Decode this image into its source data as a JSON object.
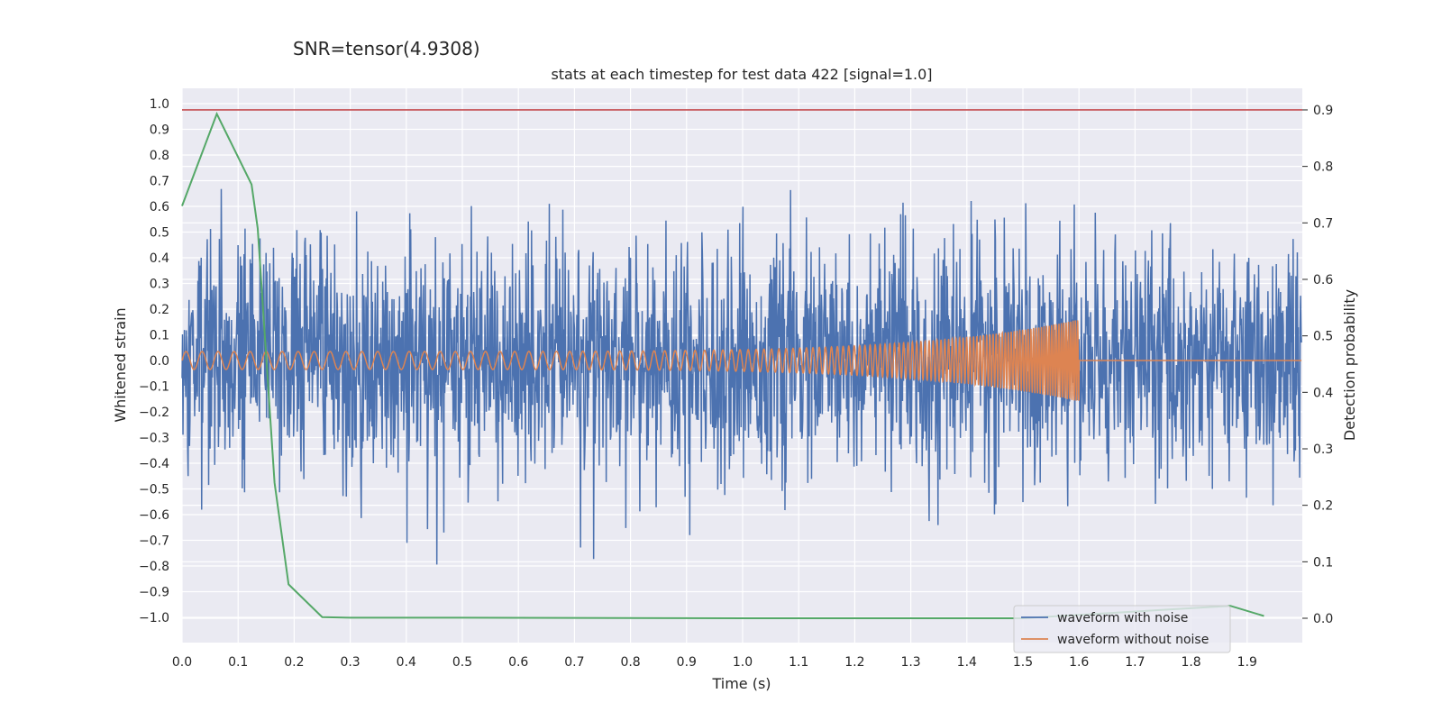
{
  "chart_data": {
    "type": "line",
    "suptitle": "SNR=tensor(4.9308)",
    "title": "stats at each timestep for test data 422 [signal=1.0]",
    "xlabel": "Time (s)",
    "ylabel": "Whitened strain",
    "ylabel_right": "Detection probability",
    "xlim": [
      0.0,
      2.0
    ],
    "ylim": [
      -1.1,
      1.1
    ],
    "ylim_right": [
      -0.04,
      0.94
    ],
    "x_ticks": [
      "0.0",
      "0.1",
      "0.2",
      "0.3",
      "0.4",
      "0.5",
      "0.6",
      "0.7",
      "0.8",
      "0.9",
      "1.0",
      "1.1",
      "1.2",
      "1.3",
      "1.4",
      "1.5",
      "1.6",
      "1.7",
      "1.8",
      "1.9"
    ],
    "y_ticks": [
      "1.0",
      "0.9",
      "0.8",
      "0.7",
      "0.6",
      "0.5",
      "0.4",
      "0.3",
      "0.2",
      "0.1",
      "0.0",
      "−0.1",
      "−0.2",
      "−0.3",
      "−0.4",
      "−0.5",
      "−0.6",
      "−0.7",
      "−0.8",
      "−0.9",
      "−1.0"
    ],
    "y_ticks_right": [
      "0.9",
      "0.8",
      "0.7",
      "0.6",
      "0.5",
      "0.4",
      "0.3",
      "0.2",
      "0.1",
      "0.0"
    ],
    "grid": true,
    "legend_position": "lower-right",
    "series": [
      {
        "name": "waveform with noise",
        "color": "#4c72b0",
        "axis": "left",
        "kind": "noise",
        "noise_amplitude_std": 0.22,
        "peak_abs": 0.97
      },
      {
        "name": "waveform without noise",
        "color": "#dd8452",
        "axis": "left",
        "kind": "chirp",
        "chirp_end_time": 1.6,
        "start_amplitude": 0.035,
        "end_amplitude": 0.16,
        "start_frequency_hz": 35,
        "end_frequency_hz": 250
      },
      {
        "name": "",
        "color": "#55a868",
        "axis": "right",
        "kind": "line",
        "x": [
          0.0,
          0.062,
          0.124,
          0.135,
          0.165,
          0.19,
          0.25,
          0.3,
          0.5,
          1.0,
          1.5,
          1.87,
          1.93
        ],
        "y": [
          0.73,
          0.893,
          0.768,
          0.69,
          0.24,
          0.06,
          0.002,
          0.001,
          0.001,
          0.0,
          0.0,
          0.022,
          0.004
        ]
      },
      {
        "name": "",
        "color": "#c44e52",
        "axis": "right",
        "kind": "hline",
        "y": 0.9
      }
    ]
  },
  "legend": {
    "noise_label": "waveform with noise",
    "clean_label": "waveform without noise"
  }
}
